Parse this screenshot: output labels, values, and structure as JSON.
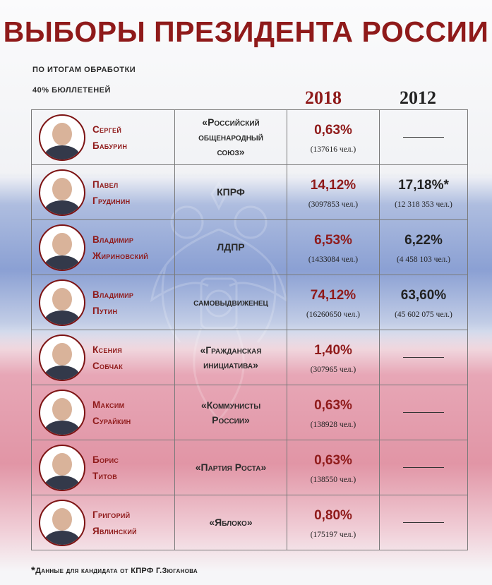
{
  "title": "ВЫБОРЫ ПРЕЗИДЕНТА РОССИИ",
  "subtitle_line1": "ПО ИТОГАМ ОБРАБОТКИ",
  "subtitle_line2": "40% БЮЛЛЕТЕНЕЙ",
  "years": {
    "current": "2018",
    "previous": "2012"
  },
  "colors": {
    "accent": "#8f1a1a",
    "text": "#222222",
    "border": "#7a7a7a"
  },
  "candidates": [
    {
      "first": "Сергей",
      "last": "Бабурин",
      "party_lines": [
        "«Российский",
        "общенародный",
        "союз»"
      ],
      "pct_2018": "0,63%",
      "votes_2018": "(137616 чел.)",
      "pct_2012": "",
      "votes_2012": ""
    },
    {
      "first": "Павел",
      "last": "Грудинин",
      "party_lines": [
        "КПРФ"
      ],
      "pct_2018": "14,12%",
      "votes_2018": "(3097853 чел.)",
      "pct_2012": "17,18%*",
      "votes_2012": "(12 318 353 чел.)"
    },
    {
      "first": "Владимир",
      "last": "Жириновский",
      "party_lines": [
        "ЛДПР"
      ],
      "pct_2018": "6,53%",
      "votes_2018": "(1433084 чел.)",
      "pct_2012": "6,22%",
      "votes_2012": "(4 458 103 чел.)"
    },
    {
      "first": "Владимир",
      "last": "Путин",
      "party_lines": [
        "самовыдвиженец"
      ],
      "pct_2018": "74,12%",
      "votes_2018": "(16260650 чел.)",
      "pct_2012": "63,60%",
      "votes_2012": "(45 602 075 чел.)"
    },
    {
      "first": "Ксения",
      "last": "Собчак",
      "party_lines": [
        "«Гражданская",
        "инициатива»"
      ],
      "pct_2018": "1,40%",
      "votes_2018": "(307965 чел.)",
      "pct_2012": "",
      "votes_2012": ""
    },
    {
      "first": "Максим",
      "last": "Сурайкин",
      "party_lines": [
        "«Коммунисты",
        "России»"
      ],
      "pct_2018": "0,63%",
      "votes_2018": "(138928 чел.)",
      "pct_2012": "",
      "votes_2012": ""
    },
    {
      "first": "Борис",
      "last": "Титов",
      "party_lines": [
        "«Партия Роста»"
      ],
      "pct_2018": "0,63%",
      "votes_2018": "(138550 чел.)",
      "pct_2012": "",
      "votes_2012": ""
    },
    {
      "first": "Григорий",
      "last": "Явлинский",
      "party_lines": [
        "«Яблоко»"
      ],
      "pct_2018": "0,80%",
      "votes_2018": "(175197 чел.)",
      "pct_2012": "",
      "votes_2012": ""
    }
  ],
  "footnote": {
    "star": "*",
    "text": "Данные для кандидата от КПРФ Г.Зюганова"
  }
}
